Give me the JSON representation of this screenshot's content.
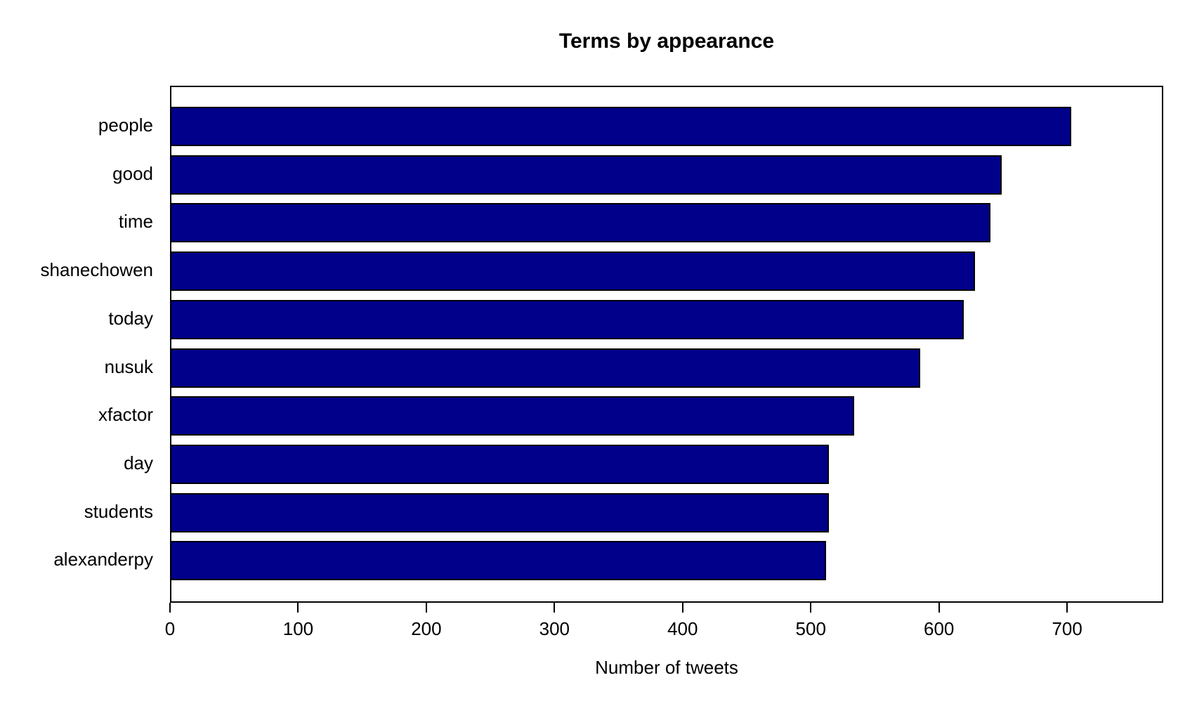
{
  "chart_data": {
    "type": "bar",
    "orientation": "horizontal",
    "title": "Terms by appearance",
    "xlabel": "Number of tweets",
    "ylabel": "",
    "categories": [
      "people",
      "good",
      "time",
      "shanechowen",
      "today",
      "nusuk",
      "xfactor",
      "day",
      "students",
      "alexanderpy"
    ],
    "values": [
      702,
      648,
      639,
      627,
      618,
      584,
      533,
      513,
      513,
      511
    ],
    "xlim": [
      0,
      775
    ],
    "xticks": [
      0,
      100,
      200,
      300,
      400,
      500,
      600,
      700
    ],
    "bar_color": "#00008B",
    "bar_border_color": "#000000",
    "background_color": "#FFFFFF",
    "grid": false,
    "legend": false
  }
}
